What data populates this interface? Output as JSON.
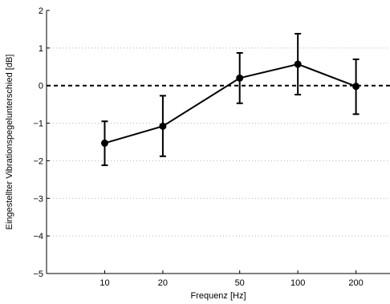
{
  "chart_data": {
    "type": "line",
    "title": "",
    "xlabel": "Frequenz [Hz]",
    "ylabel": "Eingestellter Vibrationspegelunterschied [dB]",
    "x_scale": "log",
    "xlim": [
      5,
      300
    ],
    "ylim": [
      -5,
      2
    ],
    "x_ticks": [
      10,
      20,
      50,
      100,
      200
    ],
    "x_tick_labels": [
      "10",
      "20",
      "50",
      "100",
      "200"
    ],
    "y_ticks": [
      -5,
      -4,
      -3,
      -2,
      -1,
      0,
      1,
      2
    ],
    "y_tick_labels": [
      "−5",
      "−4",
      "−3",
      "−2",
      "−1",
      "0",
      "1",
      "2"
    ],
    "grid": "horizontal dotted",
    "reference_line": {
      "y": 0,
      "style": "dashed"
    },
    "series": [
      {
        "x": [
          10,
          20,
          50,
          100,
          200
        ],
        "y": [
          -1.53,
          -1.08,
          0.2,
          0.57,
          -0.02
        ],
        "error_low": [
          -2.12,
          -1.88,
          -0.47,
          -0.24,
          -0.76
        ],
        "error_high": [
          -0.95,
          -0.27,
          0.87,
          1.38,
          0.7
        ],
        "marker": "filled-circle",
        "color": "#000000"
      }
    ]
  }
}
